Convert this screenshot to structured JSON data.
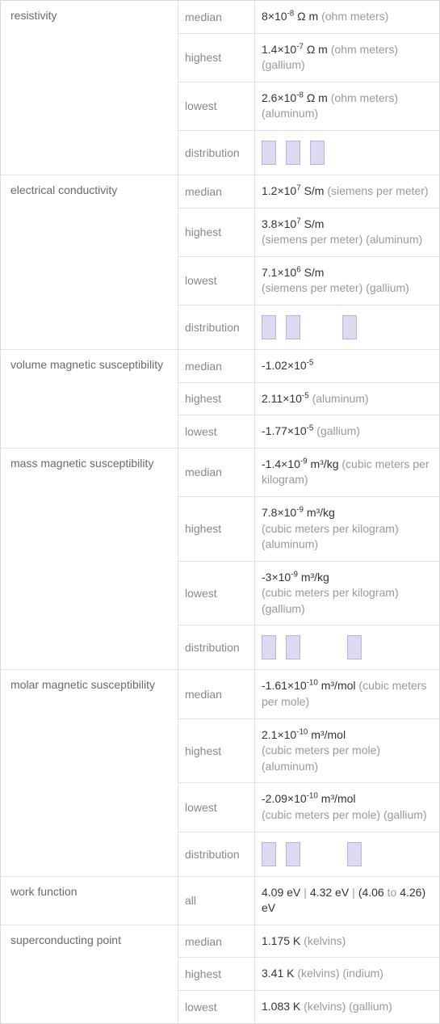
{
  "table": {
    "border_color": "#d8d8d8",
    "row_border_color": "#e0e0e0",
    "bar_fill": "#dcd9f0",
    "bar_border": "#b8b2dd",
    "prop_text_color": "#6a6a6a",
    "stat_text_color": "#888888",
    "val_text_color": "#333333",
    "secondary_text_color": "#999999"
  },
  "props": {
    "resistivity": {
      "label": "resistivity",
      "median": {
        "stat": "median",
        "coef": "8",
        "exp": "-8",
        "unit": "Ω m",
        "udesc": "(ohm meters)"
      },
      "highest": {
        "stat": "highest",
        "coef": "1.4",
        "exp": "-7",
        "unit": "Ω m",
        "udesc": "(ohm meters)",
        "elem": "(gallium)"
      },
      "lowest": {
        "stat": "lowest",
        "coef": "2.6",
        "exp": "-8",
        "unit": "Ω m",
        "udesc": "(ohm meters)",
        "elem": "(aluminum)"
      },
      "dist": {
        "stat": "distribution",
        "bars": [
          30,
          30,
          30
        ],
        "gaps": [
          0,
          0,
          0
        ]
      }
    },
    "econd": {
      "label": "electrical conductivity",
      "median": {
        "stat": "median",
        "coef": "1.2",
        "exp": "7",
        "unit": "S/m",
        "udesc": "(siemens per meter)"
      },
      "highest": {
        "stat": "highest",
        "coef": "3.8",
        "exp": "7",
        "unit": "S/m",
        "udesc": "(siemens per meter)",
        "elem": "(aluminum)"
      },
      "lowest": {
        "stat": "lowest",
        "coef": "7.1",
        "exp": "6",
        "unit": "S/m",
        "udesc": "(siemens per meter)",
        "elem": "(gallium)"
      },
      "dist": {
        "stat": "distribution",
        "bars": [
          30,
          30,
          30
        ],
        "gaps": [
          0,
          0,
          28
        ]
      }
    },
    "vms": {
      "label": "volume magnetic susceptibility",
      "median": {
        "stat": "median",
        "coef": "-1.02",
        "exp": "-5"
      },
      "highest": {
        "stat": "highest",
        "coef": "2.11",
        "exp": "-5",
        "elem": "(aluminum)"
      },
      "lowest": {
        "stat": "lowest",
        "coef": "-1.77",
        "exp": "-5",
        "elem": "(gallium)"
      }
    },
    "mms": {
      "label": "mass magnetic susceptibility",
      "median": {
        "stat": "median",
        "coef": "-1.4",
        "exp": "-9",
        "unit": "m³/kg",
        "udesc": "(cubic meters per kilogram)"
      },
      "highest": {
        "stat": "highest",
        "coef": "7.8",
        "exp": "-9",
        "unit": "m³/kg",
        "udesc": "(cubic meters per kilogram)",
        "elem": "(aluminum)"
      },
      "lowest": {
        "stat": "lowest",
        "coef": "-3",
        "exp": "-9",
        "unit": "m³/kg",
        "udesc": "(cubic meters per kilogram)",
        "elem": "(gallium)"
      },
      "dist": {
        "stat": "distribution",
        "bars": [
          30,
          30,
          30
        ],
        "gaps": [
          0,
          0,
          34
        ]
      }
    },
    "molms": {
      "label": "molar magnetic susceptibility",
      "median": {
        "stat": "median",
        "coef": "-1.61",
        "exp": "-10",
        "unit": "m³/mol",
        "udesc": "(cubic meters per mole)"
      },
      "highest": {
        "stat": "highest",
        "coef": "2.1",
        "exp": "-10",
        "unit": "m³/mol",
        "udesc": "(cubic meters per mole)",
        "elem": "(aluminum)"
      },
      "lowest": {
        "stat": "lowest",
        "coef": "-2.09",
        "exp": "-10",
        "unit": "m³/mol",
        "udesc": "(cubic meters per mole)",
        "elem": "(gallium)"
      },
      "dist": {
        "stat": "distribution",
        "bars": [
          30,
          30,
          30
        ],
        "gaps": [
          0,
          0,
          34
        ]
      }
    },
    "wf": {
      "label": "work function",
      "all": {
        "stat": "all",
        "v1": "4.09 eV",
        "v2": "4.32 eV",
        "v3a": "(4.06",
        "v3mid": "to",
        "v3b": "4.26) eV"
      }
    },
    "sc": {
      "label": "superconducting point",
      "median": {
        "stat": "median",
        "val": "1.175 K",
        "udesc": "(kelvins)"
      },
      "highest": {
        "stat": "highest",
        "val": "3.41 K",
        "udesc": "(kelvins)",
        "elem": "(indium)"
      },
      "lowest": {
        "stat": "lowest",
        "val": "1.083 K",
        "udesc": "(kelvins)",
        "elem": "(gallium)"
      }
    }
  }
}
